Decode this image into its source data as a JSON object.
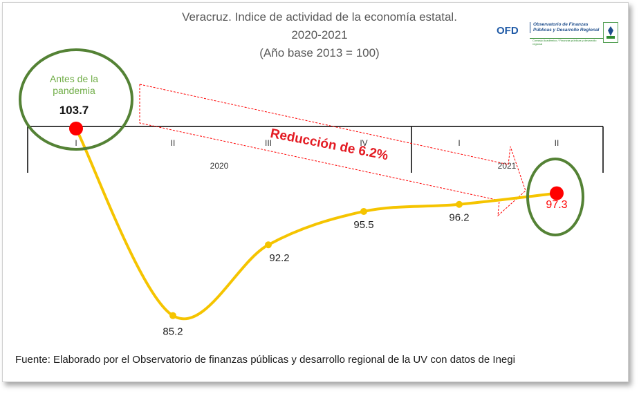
{
  "title": {
    "line1": "Veracruz. Indice de actividad  de la economía estatal.",
    "line2": "2020-2021",
    "line3": "(Año base 2013 = 100)"
  },
  "logo": {
    "abbr": "OFD",
    "name": "Observatorio de Finanzas Públicas y Desarrollo Regional",
    "sub": "Consejo Académico / Finanzas públicas y desarrollo regional"
  },
  "annotations": {
    "before_label_1": "Antes de la",
    "before_label_2": "pandemia",
    "start_value": "103.7",
    "reduction": "Reducción de 6.2%",
    "end_value": "97.3"
  },
  "footer": "Fuente: Elaborado por el Observatorio de  finanzas públicas y desarrollo regional de la UV con datos de Inegi",
  "colors": {
    "line": "#f5c400",
    "highlight_point": "#ff0000",
    "circle": "#548235",
    "arrow": "#ff0000",
    "reduction_text": "#e31b23",
    "before_text": "#70ad47"
  },
  "chart_data": {
    "type": "line",
    "x": [
      "2020-I",
      "2020-II",
      "2020-III",
      "2020-IV",
      "2021-I",
      "2021-II"
    ],
    "quarters": [
      "I",
      "II",
      "III",
      "IV",
      "I",
      "II"
    ],
    "years": [
      {
        "label": "2020",
        "span": 4
      },
      {
        "label": "2021",
        "span": 2
      }
    ],
    "values": [
      103.7,
      85.2,
      92.2,
      95.5,
      96.2,
      97.3
    ],
    "labels": [
      "103.7",
      "85.2",
      "92.2",
      "95.5",
      "96.2",
      "97.3"
    ],
    "highlighted": [
      0,
      5
    ],
    "title": "Veracruz. Indice de actividad  de la economía estatal. 2020-2021 (Año base 2013 = 100)",
    "xlabel": "",
    "ylabel": "",
    "grid": false,
    "legend": false
  }
}
